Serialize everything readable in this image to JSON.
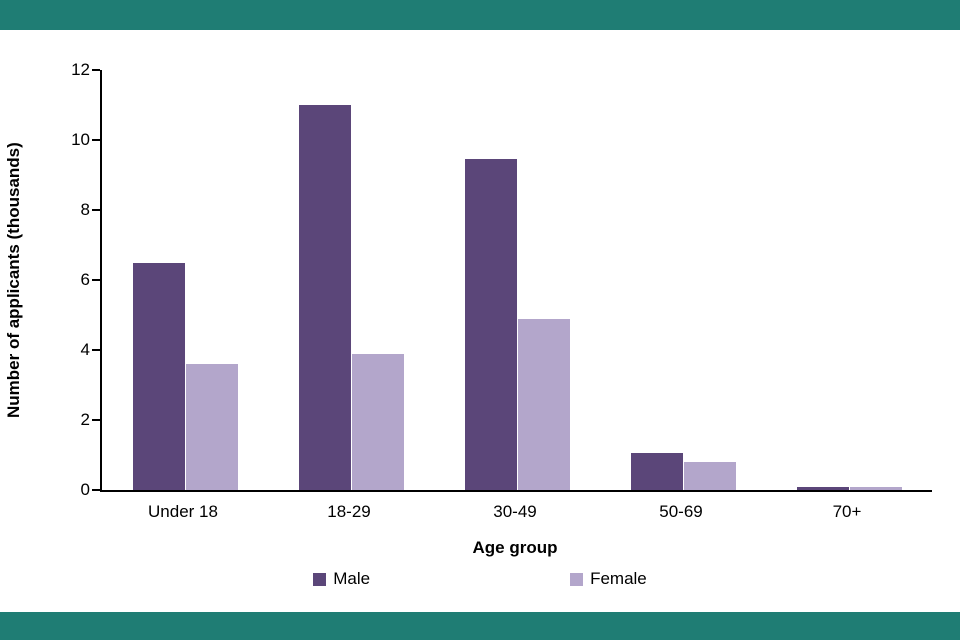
{
  "page": {
    "border_color": "#1f7d74",
    "background_color": "#ffffff"
  },
  "chart_data": {
    "type": "bar",
    "title": "",
    "categories": [
      "Under 18",
      "18-29",
      "30-49",
      "50-69",
      "70+"
    ],
    "series": [
      {
        "name": "Male",
        "color": "#5b4679",
        "values": [
          6.5,
          11.0,
          9.45,
          1.05,
          0.1
        ]
      },
      {
        "name": "Female",
        "color": "#b3a6cb",
        "values": [
          3.6,
          3.9,
          4.9,
          0.8,
          0.1
        ]
      }
    ],
    "xlabel": "Age group",
    "ylabel": "Number of applicants (thousands)",
    "ylim": [
      0,
      12
    ],
    "yticks": [
      0,
      2,
      4,
      6,
      8,
      10,
      12
    ],
    "grid": false,
    "legend_position": "bottom"
  }
}
